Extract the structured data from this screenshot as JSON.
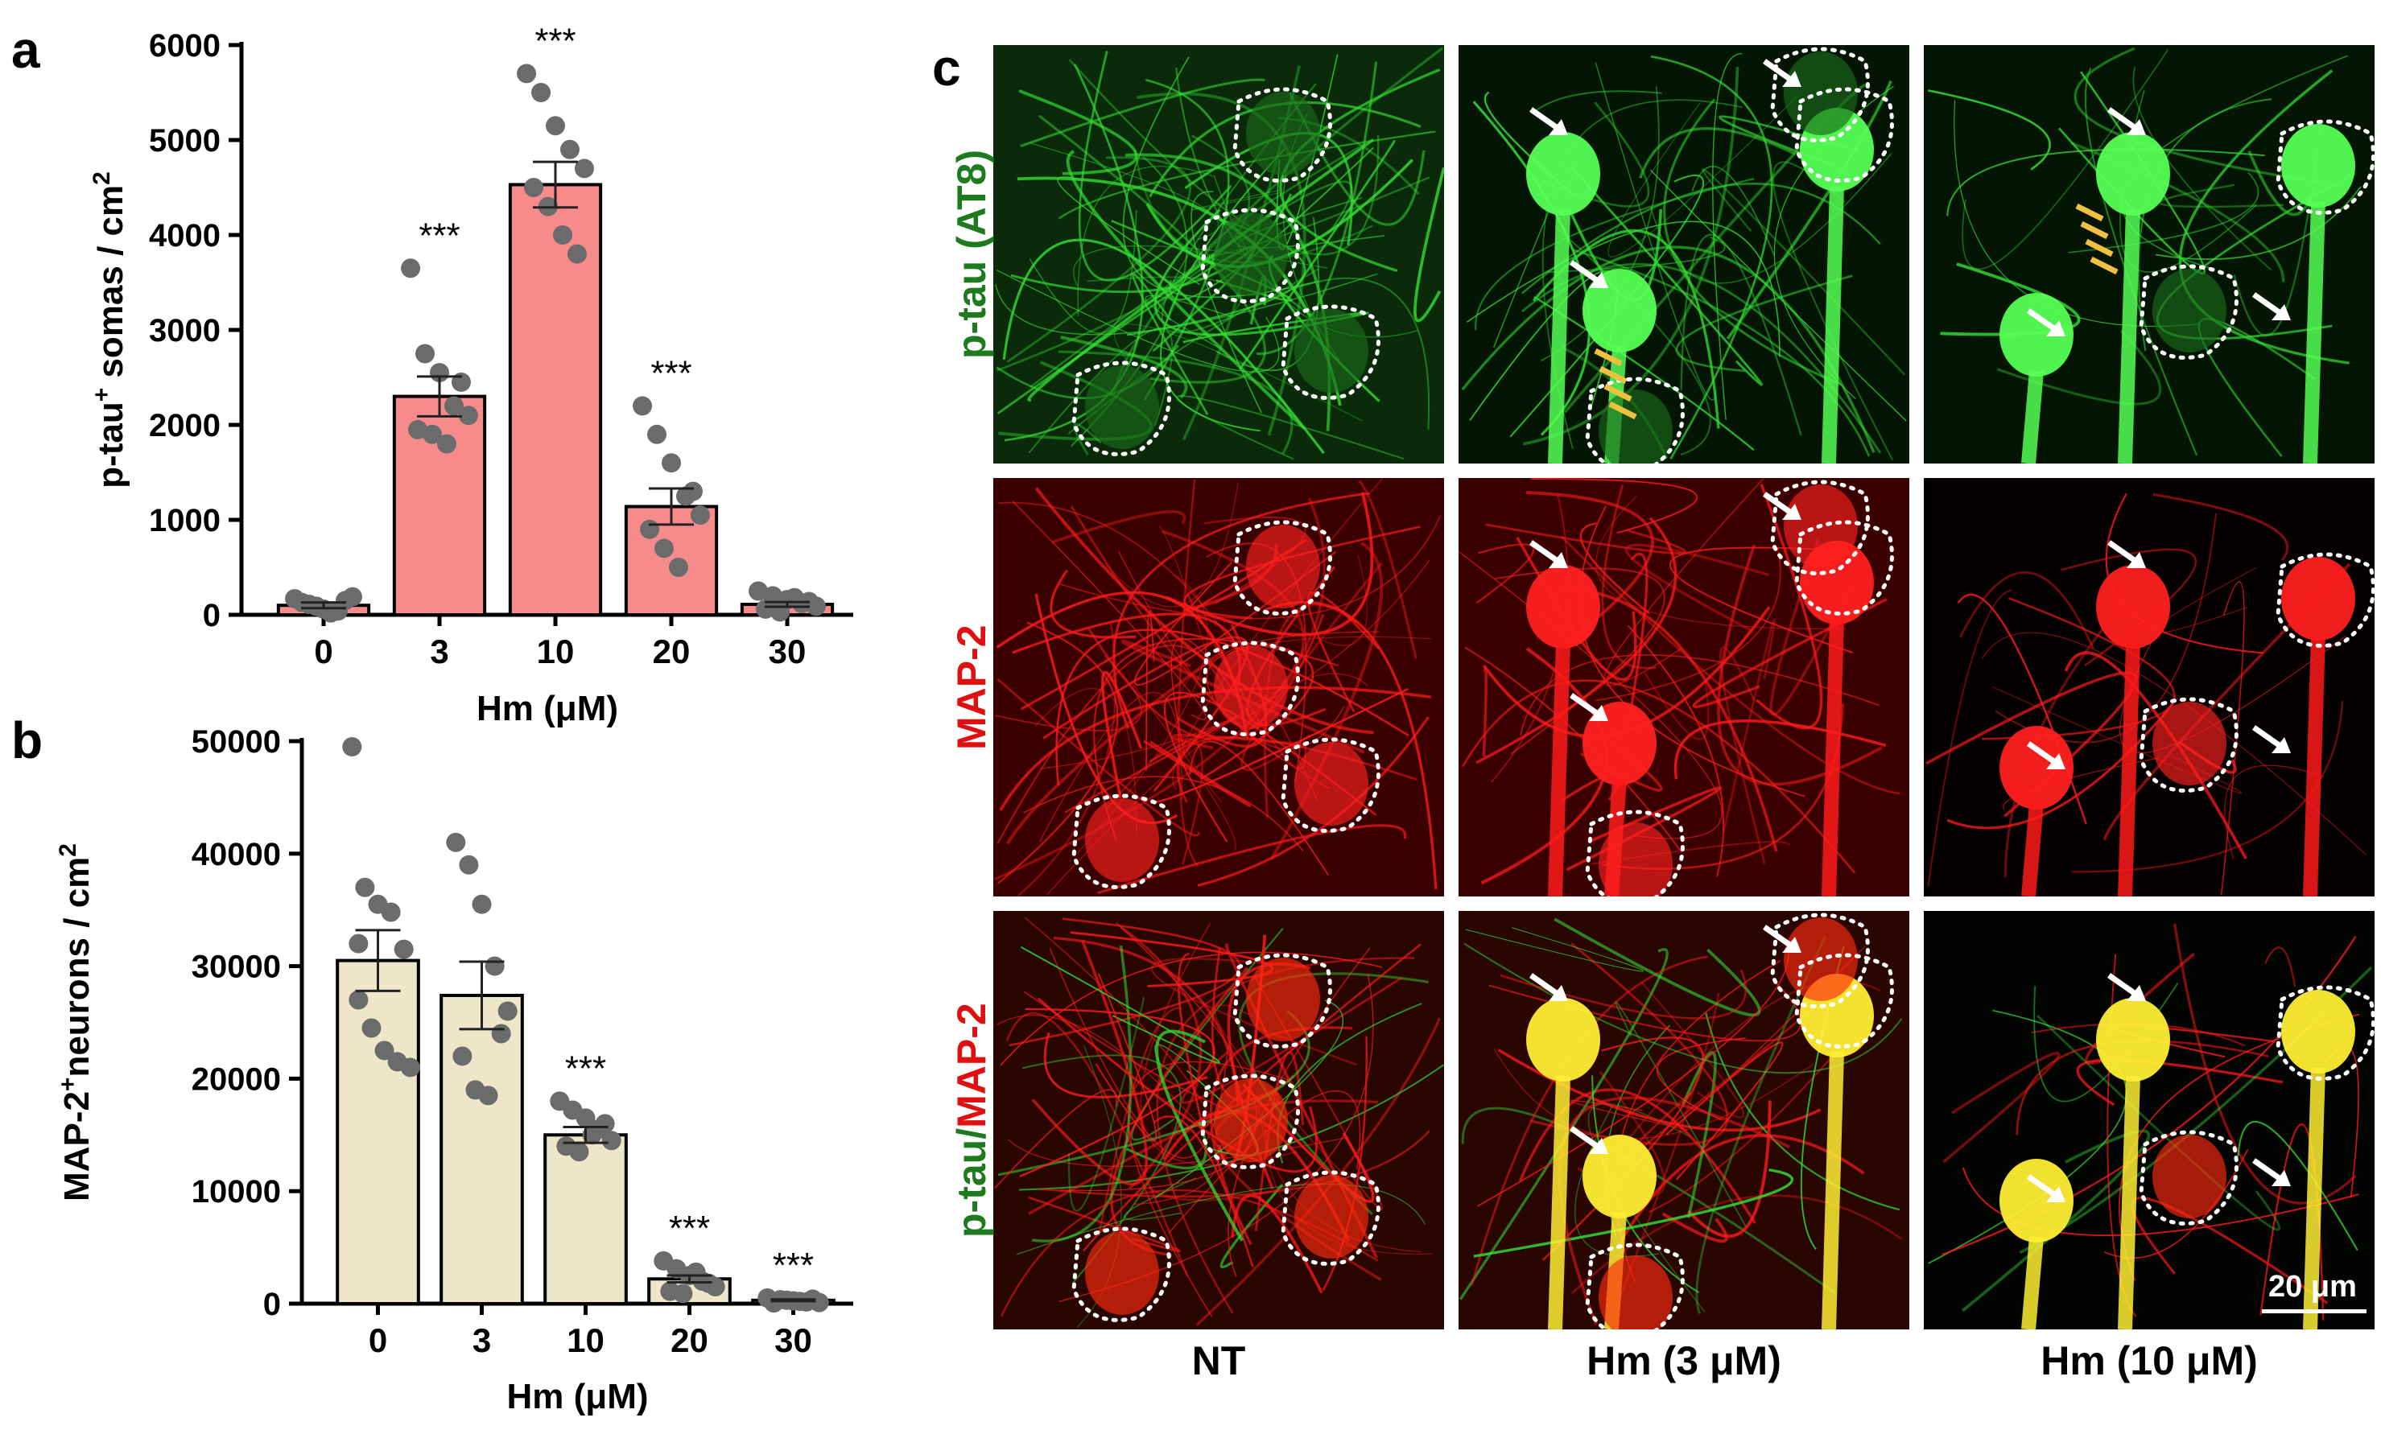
{
  "panels": {
    "a": "a",
    "b": "b",
    "c": "c"
  },
  "chart_data": [
    {
      "type": "bar",
      "panel": "a",
      "categories": [
        "0",
        "3",
        "10",
        "20",
        "30"
      ],
      "values": [
        100,
        2300,
        4530,
        1140,
        110
      ],
      "errors": [
        30,
        210,
        240,
        190,
        25
      ],
      "points": [
        [
          170,
          110,
          60,
          40,
          190,
          130,
          90,
          20,
          150
        ],
        [
          3650,
          2750,
          2550,
          2200,
          2100,
          1950,
          1900,
          1800,
          2450
        ],
        [
          5700,
          5500,
          5150,
          4900,
          4700,
          4500,
          4300,
          4000,
          3800
        ],
        [
          2200,
          1900,
          1600,
          1250,
          1050,
          900,
          700,
          500,
          1300
        ],
        [
          250,
          200,
          160,
          120,
          90,
          60,
          30,
          180,
          140
        ]
      ],
      "significance": [
        "",
        "***",
        "***",
        "***",
        ""
      ],
      "bar_color": "#f78b8b",
      "point_color": "#6b6b6b",
      "ylabel_main": "p-tau",
      "ylabel_sup": "+",
      "ylabel_rest": " somas / cm",
      "ylabel_unit_sup": "2",
      "xlabel": "Hm (μM)",
      "ylim": [
        0,
        6000
      ],
      "yticks": [
        "0",
        "1000",
        "2000",
        "3000",
        "4000",
        "5000",
        "6000"
      ]
    },
    {
      "type": "bar",
      "panel": "b",
      "categories": [
        "0",
        "3",
        "10",
        "20",
        "30"
      ],
      "values": [
        30500,
        27400,
        15000,
        2200,
        300
      ],
      "errors": [
        2700,
        3000,
        700,
        300,
        80
      ],
      "points": [
        [
          49500,
          37000,
          35500,
          34800,
          31500,
          27000,
          24500,
          22500,
          21500,
          21000,
          32000
        ],
        [
          41000,
          39000,
          35500,
          30000,
          26000,
          22000,
          19000,
          18500,
          24000
        ],
        [
          18000,
          17200,
          16500,
          15500,
          14500,
          14000,
          13500,
          15000,
          16000
        ],
        [
          3800,
          3100,
          2500,
          2000,
          1500,
          1100,
          900,
          2800,
          1800
        ],
        [
          500,
          350,
          250,
          150,
          100,
          60,
          300,
          200,
          400
        ]
      ],
      "significance": [
        "",
        "",
        "***",
        "***",
        "***"
      ],
      "bar_color": "#ede6c8",
      "point_color": "#6b6b6b",
      "ylabel_main": "MAP-2",
      "ylabel_sup": "+",
      "ylabel_rest": "neurons / cm",
      "ylabel_unit_sup": "2",
      "xlabel": "Hm (μM)",
      "ylim": [
        0,
        50000
      ],
      "yticks": [
        "0",
        "10000",
        "20000",
        "30000",
        "40000",
        "50000"
      ]
    }
  ],
  "micrographs": {
    "rows": [
      {
        "label_parts": [
          {
            "text": "p-tau (AT8)",
            "color": "#1e7a1e"
          }
        ],
        "channel": "green"
      },
      {
        "label_parts": [
          {
            "text": "MAP-2",
            "color": "#e01010"
          }
        ],
        "channel": "red"
      },
      {
        "label_parts": [
          {
            "text": "p-tau/",
            "color": "#1e7a1e"
          },
          {
            "text": "MAP-2",
            "color": "#e01010"
          }
        ],
        "channel": "merge"
      }
    ],
    "columns": [
      "NT",
      "Hm (3 μM)",
      "Hm (10 μM)"
    ],
    "scale_bar": "20 μm",
    "colors": {
      "green": "#33dd33",
      "red": "#ff1a1a",
      "merge": "#ffee33"
    }
  }
}
